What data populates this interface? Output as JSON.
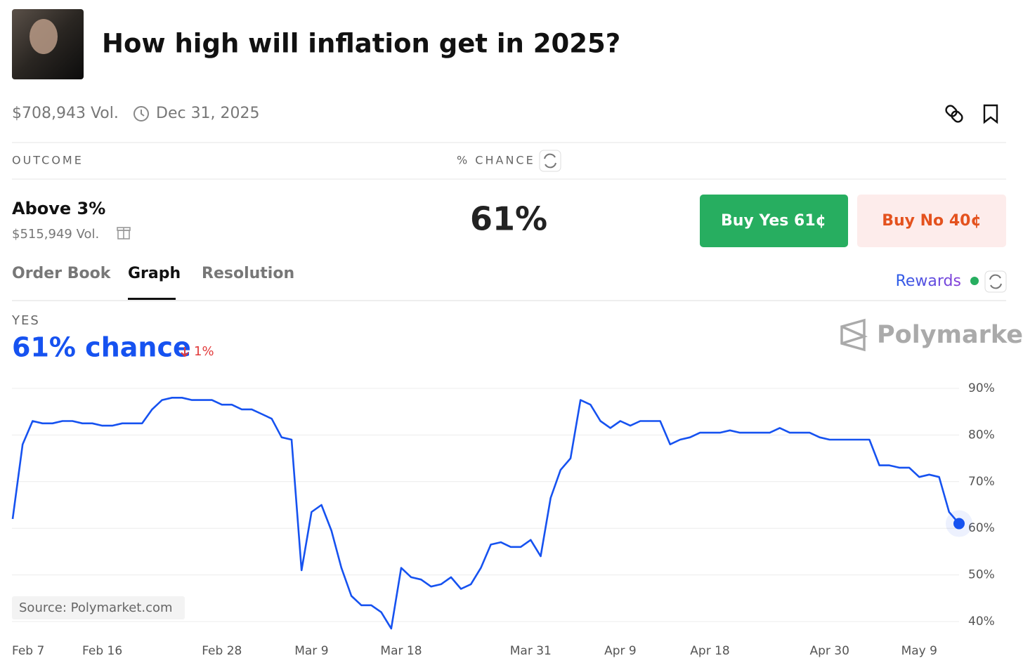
{
  "header": {
    "title": "How high will inflation get in 2025?"
  },
  "meta": {
    "volume": "$708,943 Vol.",
    "date": "Dec 31, 2025"
  },
  "table": {
    "headers": [
      "OUTCOME",
      "% CHANCE"
    ]
  },
  "outcome": {
    "name": "Above 3%",
    "volume": "$515,949 Vol.",
    "chance": "61%",
    "buy_yes": "Buy Yes 61¢",
    "buy_no": "Buy No 40¢"
  },
  "tabs": [
    "Order Book",
    "Graph",
    "Resolution"
  ],
  "rewards": "Rewards",
  "summary": {
    "side": "YES",
    "chance": "61% chance",
    "change": "1%"
  },
  "brand": "Polymarket",
  "source": "Source: Polymarket.com",
  "chart_data": {
    "type": "line",
    "color": "#1652f0",
    "categories": [
      "Feb 7",
      null,
      null,
      null,
      null,
      null,
      null,
      null,
      null,
      "Feb 16",
      null,
      null,
      null,
      null,
      null,
      null,
      null,
      null,
      null,
      null,
      null,
      "Feb 28",
      null,
      null,
      null,
      null,
      null,
      null,
      null,
      null,
      "Mar 9",
      null,
      null,
      null,
      null,
      null,
      null,
      null,
      null,
      "Mar 18",
      null,
      null,
      null,
      null,
      null,
      null,
      null,
      null,
      null,
      null,
      null,
      null,
      "Mar 31",
      null,
      null,
      null,
      null,
      null,
      null,
      null,
      null,
      "Apr 9",
      null,
      null,
      null,
      null,
      null,
      null,
      null,
      null,
      "Apr 18",
      null,
      null,
      null,
      null,
      null,
      null,
      null,
      null,
      null,
      null,
      null,
      "Apr 30",
      null,
      null,
      null,
      null,
      null,
      null,
      null,
      null,
      "May 9",
      null,
      null,
      null,
      null
    ],
    "values": [
      62,
      78,
      83,
      82.5,
      82.5,
      83,
      83,
      82.5,
      82.5,
      82,
      82,
      82.5,
      82.5,
      82.5,
      85.5,
      87.5,
      88,
      88,
      87.5,
      87.5,
      87.5,
      86.5,
      86.5,
      85.5,
      85.5,
      84.5,
      83.5,
      79.5,
      79,
      51,
      63.5,
      65,
      59.5,
      51.5,
      45.5,
      43.5,
      43.5,
      42,
      38.5,
      51.5,
      49.5,
      49,
      47.5,
      48,
      49.5,
      47,
      48,
      51.5,
      56.5,
      57,
      56,
      56,
      57.5,
      54,
      66.5,
      72.5,
      75,
      87.5,
      86.5,
      83,
      81.5,
      83,
      82,
      83,
      83,
      83,
      78,
      79,
      79.5,
      80.5,
      80.5,
      80.5,
      81,
      80.5,
      80.5,
      80.5,
      80.5,
      81.5,
      80.5,
      80.5,
      80.5,
      79.5,
      79,
      79,
      79,
      79,
      79,
      73.5,
      73.5,
      73,
      73,
      71,
      71.5,
      71,
      63.5,
      61
    ],
    "ylim": [
      40,
      90
    ],
    "yticks": [
      {
        "value": 40,
        "label": "40%"
      },
      {
        "value": 50,
        "label": "50%"
      },
      {
        "value": 60,
        "label": "60%"
      },
      {
        "value": 70,
        "label": "70%"
      },
      {
        "value": 80,
        "label": "80%"
      },
      {
        "value": 90,
        "label": "90%"
      }
    ],
    "grid": true
  }
}
